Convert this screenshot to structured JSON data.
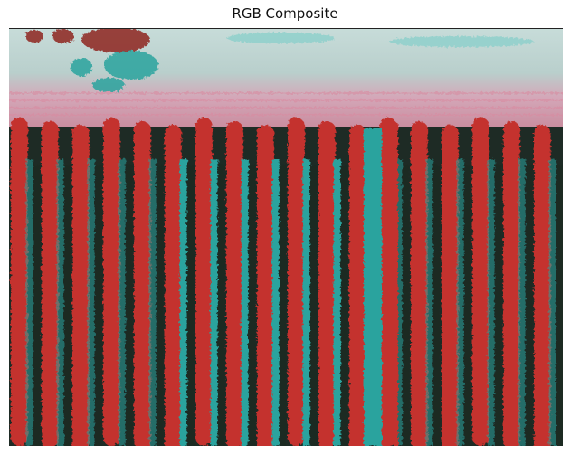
{
  "title": "RGB Composite",
  "image": {
    "kind": "rgb-composite-photo",
    "palette": {
      "red": "#c4332e",
      "dark_red": "#8e2320",
      "teal": "#2aa39e",
      "light_teal": "#8fd0cb",
      "dark": "#1c2a24",
      "pink": "#d98aa0",
      "white": "#e8efee"
    }
  }
}
